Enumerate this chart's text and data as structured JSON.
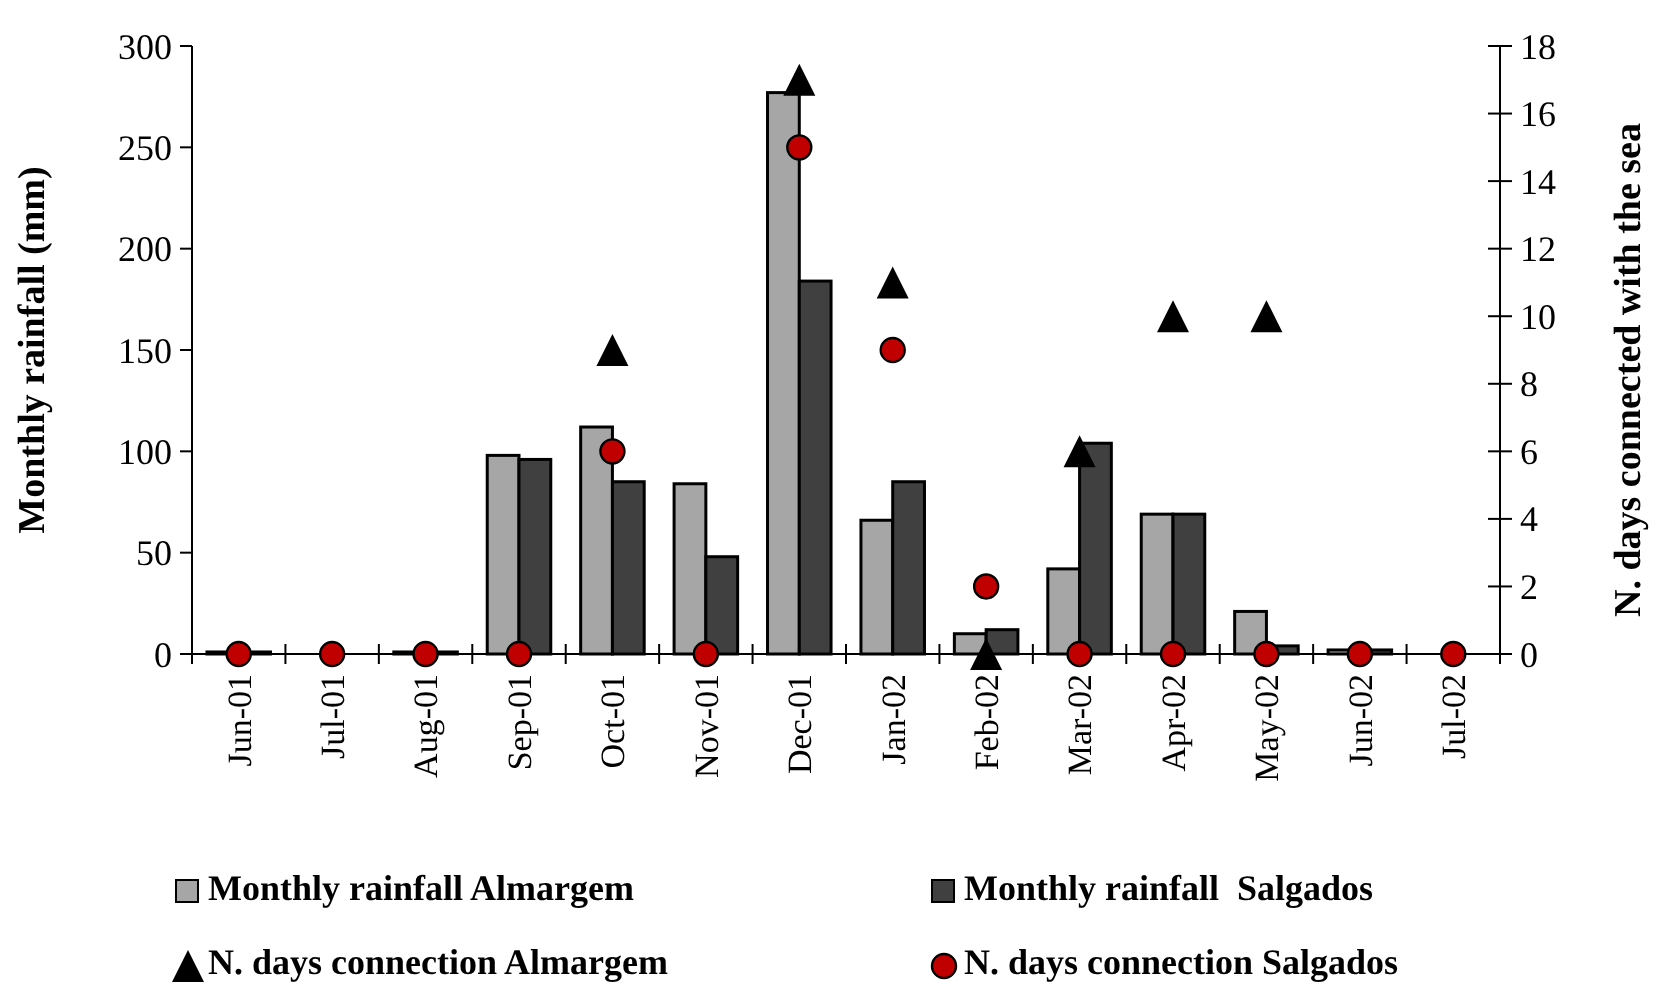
{
  "chart_data": {
    "type": "bar",
    "ylabel": "Monthly rainfall  (mm)",
    "y2label": "N. days connected with the sea",
    "categories": [
      "Jun-01",
      "Jul-01",
      "Aug-01",
      "Sep-01",
      "Oct-01",
      "Nov-01",
      "Dec-01",
      "Jan-02",
      "Feb-02",
      "Mar-02",
      "Apr-02",
      "May-02",
      "Jun-02",
      "Jul-02"
    ],
    "series": [
      {
        "name": "Monthly rainfall Almargem",
        "color": "#a6a6a6",
        "values": [
          1,
          0,
          1,
          98,
          112,
          84,
          277,
          66,
          10,
          42,
          69,
          21,
          2,
          0
        ]
      },
      {
        "name": "Monthly rainfall  Salgados",
        "color": "#404040",
        "values": [
          1,
          0,
          1,
          96,
          85,
          48,
          184,
          85,
          12,
          104,
          69,
          4,
          2,
          0
        ]
      },
      {
        "name": "N. days connection Almargem",
        "type": "scatter",
        "axis": "y2",
        "marker": "triangle",
        "color": "#000000",
        "values": [
          null,
          null,
          null,
          null,
          9,
          null,
          17,
          11,
          0,
          6,
          10,
          10,
          null,
          null
        ]
      },
      {
        "name": "N. days connection Salgados",
        "type": "scatter",
        "axis": "y2",
        "marker": "circle",
        "color": "#c00000",
        "values": [
          0,
          0,
          0,
          0,
          6,
          0,
          15,
          9,
          2,
          0,
          0,
          0,
          0,
          0
        ]
      }
    ],
    "ylim": [
      0,
      300
    ],
    "yticks": [
      0,
      50,
      100,
      150,
      200,
      250,
      300
    ],
    "y2lim": [
      0,
      18
    ],
    "y2ticks": [
      0,
      2,
      4,
      6,
      8,
      10,
      12,
      14,
      16,
      18
    ],
    "legend": "bottom",
    "grid": false
  }
}
